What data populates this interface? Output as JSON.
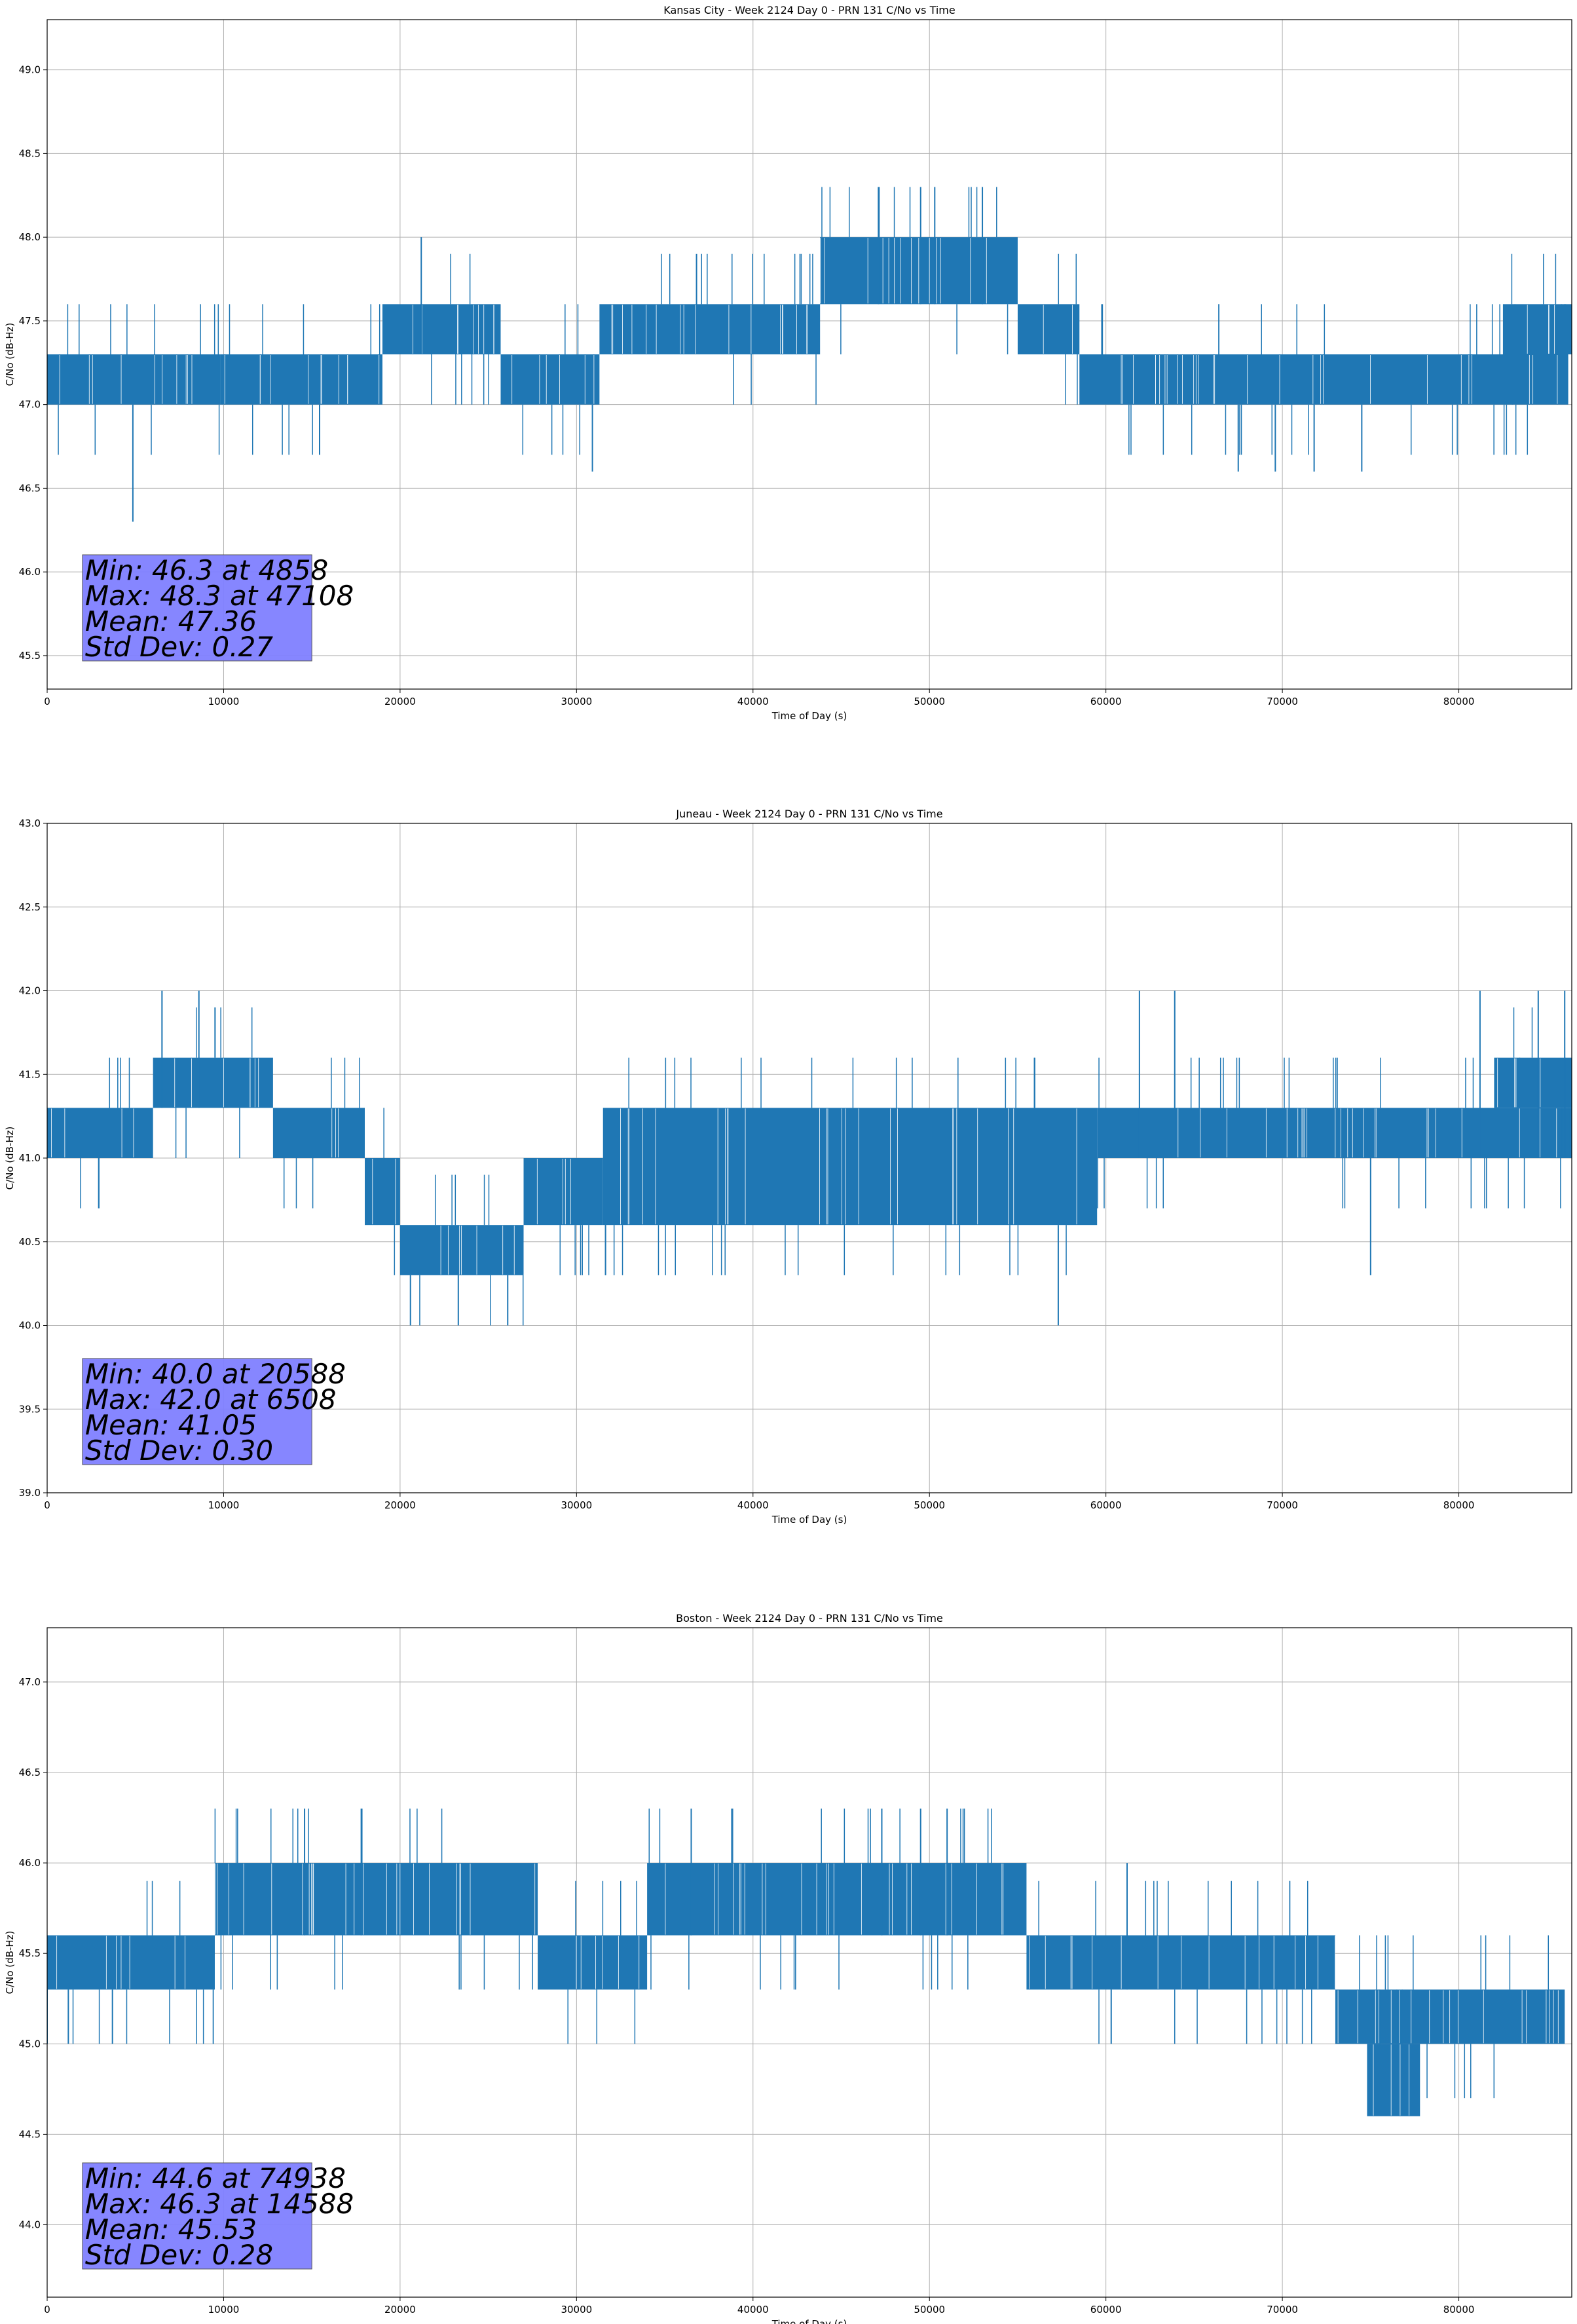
{
  "chart_data": [
    {
      "type": "line",
      "title": "Kansas City - Week 2124 Day 0 - PRN 131 C/No vs Time",
      "xlabel": "Time of Day (s)",
      "ylabel": "C/No (dB-Hz)",
      "xlim": [
        0,
        86400
      ],
      "ylim": [
        45.3,
        49.3
      ],
      "xticks": [
        0,
        10000,
        20000,
        30000,
        40000,
        50000,
        60000,
        70000,
        80000
      ],
      "yticks": [
        45.5,
        46.0,
        46.5,
        47.0,
        47.5,
        48.0,
        48.5,
        49.0
      ],
      "ytick_labels": [
        "45.5",
        "46.0",
        "46.5",
        "47.0",
        "47.5",
        "48.0",
        "48.5",
        "49.0"
      ],
      "grid": true,
      "series_color": "#1f77b4",
      "stats_box_color": "#8080ff",
      "stats": [
        "Min: 46.3 at 4858",
        "Max: 48.3 at 47108",
        "Mean: 47.36",
        "Std Dev: 0.27"
      ],
      "series": [
        {
          "bands": [
            {
              "x_start": 0,
              "x_end": 9800,
              "low": 47.0,
              "high": 47.3
            },
            {
              "x_start": 9800,
              "x_end": 19000,
              "low": 47.0,
              "high": 47.3
            },
            {
              "x_start": 19000,
              "x_end": 25700,
              "low": 47.3,
              "high": 47.6
            },
            {
              "x_start": 25700,
              "x_end": 31300,
              "low": 47.0,
              "high": 47.3
            },
            {
              "x_start": 31300,
              "x_end": 43800,
              "low": 47.3,
              "high": 47.6
            },
            {
              "x_start": 43800,
              "x_end": 55000,
              "low": 47.6,
              "high": 48.0
            },
            {
              "x_start": 55000,
              "x_end": 58500,
              "low": 47.3,
              "high": 47.6
            },
            {
              "x_start": 58500,
              "x_end": 86200,
              "low": 47.0,
              "high": 47.3
            },
            {
              "x_start": 82500,
              "x_end": 86400,
              "low": 47.3,
              "high": 47.6
            }
          ],
          "spikes": [
            {
              "x": 4858,
              "value": 46.3
            },
            {
              "x": 21200,
              "value": 48.0
            },
            {
              "x": 30900,
              "value": 46.6
            },
            {
              "x": 36800,
              "value": 47.9
            },
            {
              "x": 47108,
              "value": 48.3
            },
            {
              "x": 49500,
              "value": 48.3
            },
            {
              "x": 50300,
              "value": 48.3
            },
            {
              "x": 53000,
              "value": 48.3
            },
            {
              "x": 67500,
              "value": 46.6
            },
            {
              "x": 69600,
              "value": 46.6
            },
            {
              "x": 71800,
              "value": 46.6
            },
            {
              "x": 74500,
              "value": 46.6
            }
          ]
        }
      ]
    },
    {
      "type": "line",
      "title": "Juneau - Week 2124 Day 0 - PRN 131 C/No vs Time",
      "xlabel": "Time of Day (s)",
      "ylabel": "C/No (dB-Hz)",
      "xlim": [
        0,
        86400
      ],
      "ylim": [
        39.0,
        43.0
      ],
      "xticks": [
        0,
        10000,
        20000,
        30000,
        40000,
        50000,
        60000,
        70000,
        80000
      ],
      "yticks": [
        39.0,
        39.5,
        40.0,
        40.5,
        41.0,
        41.5,
        42.0,
        42.5,
        43.0
      ],
      "ytick_labels": [
        "39.0",
        "39.5",
        "40.0",
        "40.5",
        "41.0",
        "41.5",
        "42.0",
        "42.5",
        "43.0"
      ],
      "grid": true,
      "series_color": "#1f77b4",
      "stats_box_color": "#8080ff",
      "stats": [
        "Min: 40.0 at 20588",
        "Max: 42.0 at 6508",
        "Mean: 41.05",
        "Std Dev: 0.30"
      ],
      "series": [
        {
          "bands": [
            {
              "x_start": 0,
              "x_end": 6000,
              "low": 41.0,
              "high": 41.3
            },
            {
              "x_start": 6000,
              "x_end": 12800,
              "low": 41.3,
              "high": 41.6
            },
            {
              "x_start": 12800,
              "x_end": 18000,
              "low": 41.0,
              "high": 41.3
            },
            {
              "x_start": 18000,
              "x_end": 20000,
              "low": 40.6,
              "high": 41.0
            },
            {
              "x_start": 20000,
              "x_end": 27000,
              "low": 40.3,
              "high": 40.6
            },
            {
              "x_start": 27000,
              "x_end": 31500,
              "low": 40.6,
              "high": 41.0
            },
            {
              "x_start": 31500,
              "x_end": 59500,
              "low": 40.6,
              "high": 41.3
            },
            {
              "x_start": 59500,
              "x_end": 86400,
              "low": 41.0,
              "high": 41.3
            },
            {
              "x_start": 82000,
              "x_end": 86400,
              "low": 41.3,
              "high": 41.6
            }
          ],
          "spikes": [
            {
              "x": 6508,
              "value": 42.0
            },
            {
              "x": 8600,
              "value": 42.0
            },
            {
              "x": 20588,
              "value": 40.0
            },
            {
              "x": 23300,
              "value": 40.0
            },
            {
              "x": 26100,
              "value": 40.0
            },
            {
              "x": 57300,
              "value": 40.0
            },
            {
              "x": 61900,
              "value": 42.0
            },
            {
              "x": 63900,
              "value": 42.0
            },
            {
              "x": 75000,
              "value": 40.3
            },
            {
              "x": 81200,
              "value": 42.0
            },
            {
              "x": 84500,
              "value": 42.0
            },
            {
              "x": 86000,
              "value": 42.0
            }
          ]
        }
      ]
    },
    {
      "type": "line",
      "title": "Boston - Week 2124 Day 0 - PRN 131 C/No vs Time",
      "xlabel": "Time of Day (s)",
      "ylabel": "C/No (dB-Hz)",
      "xlim": [
        0,
        86400
      ],
      "ylim": [
        43.6,
        47.3
      ],
      "xticks": [
        0,
        10000,
        20000,
        30000,
        40000,
        50000,
        60000,
        70000,
        80000
      ],
      "yticks": [
        44.0,
        44.5,
        45.0,
        45.5,
        46.0,
        46.5,
        47.0
      ],
      "ytick_labels": [
        "44.0",
        "44.5",
        "45.0",
        "45.5",
        "46.0",
        "46.5",
        "47.0"
      ],
      "grid": true,
      "series_color": "#1f77b4",
      "stats_box_color": "#8080ff",
      "stats": [
        "Min: 44.6 at 74938",
        "Max: 46.3 at 14588",
        "Mean: 45.53",
        "Std Dev: 0.28"
      ],
      "series": [
        {
          "bands": [
            {
              "x_start": 0,
              "x_end": 9500,
              "low": 45.3,
              "high": 45.6
            },
            {
              "x_start": 9500,
              "x_end": 27800,
              "low": 45.6,
              "high": 46.0
            },
            {
              "x_start": 27800,
              "x_end": 34000,
              "low": 45.3,
              "high": 45.6
            },
            {
              "x_start": 34000,
              "x_end": 55500,
              "low": 45.6,
              "high": 46.0
            },
            {
              "x_start": 55500,
              "x_end": 73000,
              "low": 45.3,
              "high": 45.6
            },
            {
              "x_start": 73000,
              "x_end": 86000,
              "low": 45.0,
              "high": 45.3
            },
            {
              "x_start": 74800,
              "x_end": 77800,
              "low": 44.6,
              "high": 45.0
            }
          ],
          "spikes": [
            {
              "x": 0,
              "value": 45.0
            },
            {
              "x": 1200,
              "value": 45.0
            },
            {
              "x": 3700,
              "value": 45.0
            },
            {
              "x": 14588,
              "value": 46.3
            },
            {
              "x": 17800,
              "value": 46.3
            },
            {
              "x": 36500,
              "value": 46.3
            },
            {
              "x": 47300,
              "value": 46.3
            },
            {
              "x": 49500,
              "value": 46.3
            },
            {
              "x": 51000,
              "value": 46.3
            },
            {
              "x": 60300,
              "value": 45.0
            },
            {
              "x": 61200,
              "value": 46.0
            }
          ]
        }
      ]
    }
  ]
}
